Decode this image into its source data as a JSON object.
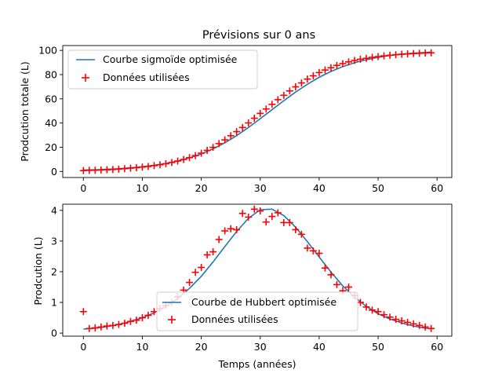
{
  "chart_data": [
    {
      "type": "line",
      "title": "Prévisions sur 0 ans",
      "xlabel": "",
      "ylabel": "Prodcution totale (L)",
      "xlim": [
        -3.5,
        62.5
      ],
      "ylim": [
        -5,
        104
      ],
      "xticks": [
        0,
        10,
        20,
        30,
        40,
        50,
        60
      ],
      "yticks": [
        0,
        20,
        40,
        60,
        80,
        100
      ],
      "legend_position": "top-left",
      "series": [
        {
          "name": "Courbe sigmoïde optimisée",
          "kind": "line",
          "color": "#1f77b4",
          "x": [
            0,
            2,
            4,
            6,
            8,
            10,
            12,
            14,
            16,
            18,
            20,
            22,
            24,
            26,
            28,
            30,
            32,
            34,
            36,
            38,
            40,
            42,
            44,
            46,
            48,
            50,
            52,
            54,
            56,
            58,
            59
          ],
          "y": [
            1.2,
            1.4,
            1.8,
            2.3,
            3.0,
            3.9,
            5.1,
            6.6,
            8.6,
            11.2,
            14.5,
            18.7,
            23.7,
            29.6,
            36.3,
            43.6,
            51.0,
            58.4,
            65.6,
            72.0,
            77.8,
            82.6,
            86.6,
            89.8,
            92.3,
            94.3,
            95.8,
            96.9,
            97.7,
            98.3,
            98.6
          ]
        },
        {
          "name": "Données utilisées",
          "kind": "scatter",
          "color": "#ff0000",
          "x": [
            0,
            1,
            2,
            3,
            4,
            5,
            6,
            7,
            8,
            9,
            10,
            11,
            12,
            13,
            14,
            15,
            16,
            17,
            18,
            19,
            20,
            21,
            22,
            23,
            24,
            25,
            26,
            27,
            28,
            29,
            30,
            31,
            32,
            33,
            34,
            35,
            36,
            37,
            38,
            39,
            40,
            41,
            42,
            43,
            44,
            45,
            46,
            47,
            48,
            49,
            50,
            51,
            52,
            53,
            54,
            55,
            56,
            57,
            58,
            59
          ],
          "y": [
            0.7,
            0.9,
            1.0,
            1.2,
            1.4,
            1.6,
            1.9,
            2.3,
            2.7,
            3.1,
            3.6,
            4.1,
            4.8,
            5.5,
            6.4,
            7.4,
            8.6,
            9.9,
            11.4,
            13.1,
            15.1,
            17.4,
            19.9,
            23.0,
            26.1,
            29.5,
            32.9,
            36.3,
            40.1,
            44.0,
            48.0,
            51.6,
            55.4,
            59.3,
            62.9,
            66.5,
            69.9,
            73.1,
            76.3,
            79.0,
            81.7,
            83.8,
            85.7,
            87.6,
            89.1,
            90.5,
            91.7,
            92.7,
            93.5,
            94.3,
            94.9,
            95.5,
            96.0,
            96.4,
            96.8,
            97.1,
            97.4,
            97.6,
            97.8,
            98.0
          ]
        }
      ]
    },
    {
      "type": "line",
      "title": "",
      "xlabel": "Temps (années)",
      "ylabel": "Prodcution (L)",
      "xlim": [
        -3.5,
        62.5
      ],
      "ylim": [
        -0.1,
        4.2
      ],
      "xticks": [
        0,
        10,
        20,
        30,
        40,
        50,
        60
      ],
      "yticks": [
        0,
        1,
        2,
        3,
        4
      ],
      "legend_position": "lower-center",
      "series": [
        {
          "name": "Courbe de Hubbert optimisée",
          "kind": "line",
          "color": "#1f77b4",
          "x": [
            0,
            2,
            4,
            6,
            8,
            10,
            12,
            14,
            16,
            18,
            20,
            22,
            24,
            26,
            28,
            30,
            32,
            34,
            36,
            38,
            40,
            42,
            44,
            46,
            48,
            50,
            52,
            54,
            56,
            58,
            59
          ],
          "y": [
            0.13,
            0.16,
            0.21,
            0.28,
            0.38,
            0.5,
            0.66,
            0.87,
            1.13,
            1.46,
            1.85,
            2.32,
            2.82,
            3.31,
            3.74,
            4.02,
            4.04,
            3.83,
            3.45,
            2.98,
            2.48,
            1.99,
            1.54,
            1.17,
            0.87,
            0.63,
            0.46,
            0.33,
            0.23,
            0.16,
            0.14
          ]
        },
        {
          "name": "Données utilisées",
          "kind": "scatter",
          "color": "#ff0000",
          "x": [
            0,
            1,
            2,
            3,
            4,
            5,
            6,
            7,
            8,
            9,
            10,
            11,
            12,
            13,
            14,
            15,
            16,
            17,
            18,
            19,
            20,
            21,
            22,
            23,
            24,
            25,
            26,
            27,
            28,
            29,
            30,
            31,
            32,
            33,
            34,
            35,
            36,
            37,
            38,
            39,
            40,
            41,
            42,
            43,
            44,
            45,
            46,
            47,
            48,
            49,
            50,
            51,
            52,
            53,
            54,
            55,
            56,
            57,
            58,
            59
          ],
          "y": [
            0.7,
            0.15,
            0.17,
            0.2,
            0.23,
            0.25,
            0.28,
            0.32,
            0.38,
            0.42,
            0.5,
            0.58,
            0.7,
            0.8,
            0.9,
            1.0,
            1.18,
            1.4,
            1.65,
            1.98,
            2.14,
            2.55,
            2.65,
            3.05,
            3.33,
            3.4,
            3.37,
            3.9,
            3.78,
            4.04,
            3.98,
            3.62,
            3.8,
            3.92,
            3.6,
            3.6,
            3.37,
            3.22,
            2.77,
            2.68,
            2.6,
            2.12,
            1.9,
            1.58,
            1.38,
            1.5,
            1.22,
            1.0,
            0.85,
            0.75,
            0.7,
            0.6,
            0.52,
            0.45,
            0.4,
            0.35,
            0.3,
            0.25,
            0.2,
            0.15
          ]
        }
      ]
    }
  ]
}
